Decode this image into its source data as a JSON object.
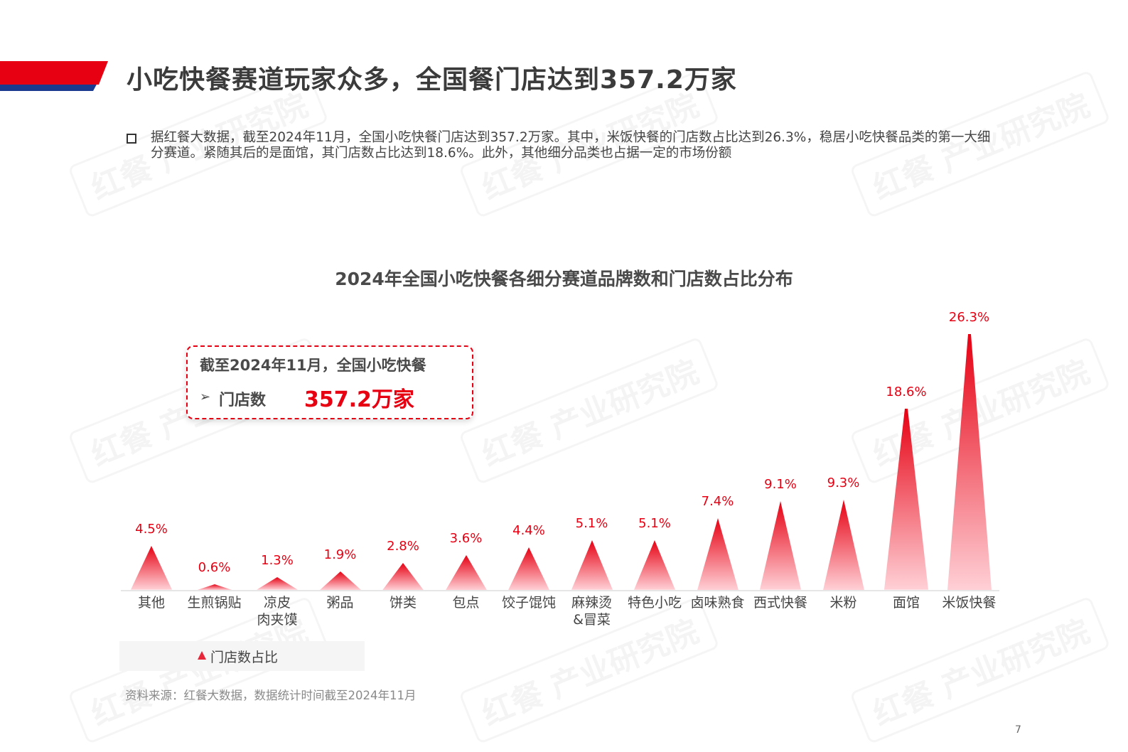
{
  "header": {
    "title": "小吃快餐赛道玩家众多，全国餐门店达到357.2万家",
    "band_colors": {
      "red": "#e60012",
      "blue": "#1a3a8f"
    }
  },
  "intro": {
    "text": "据红餐大数据，截至2024年11月，全国小吃快餐门店达到357.2万家。其中，米饭快餐的门店数占比达到26.3%，稳居小吃快餐品类的第一大细分赛道。紧随其后的是面馆，其门店数占比达到18.6%。此外，其他细分品类也占据一定的市场份额"
  },
  "callout": {
    "line1": "截至2024年11月，全国小吃快餐",
    "arrow": "➢",
    "label": "门店数",
    "value": "357.2万家"
  },
  "chart_data": {
    "type": "bar",
    "style": "triangle-pictograph",
    "title": "2024年全国小吃快餐各细分赛道品牌数和门店数占比分布",
    "categories": [
      "其他",
      "生煎锅贴",
      "凉皮\n肉夹馍",
      "粥品",
      "饼类",
      "包点",
      "饺子馄饨",
      "麻辣烫\n&冒菜",
      "特色小吃",
      "卤味熟食",
      "西式快餐",
      "米粉",
      "面馆",
      "米饭快餐"
    ],
    "series": [
      {
        "name": "门店数占比",
        "unit": "%",
        "values": [
          4.5,
          0.6,
          1.3,
          1.9,
          2.8,
          3.6,
          4.4,
          5.1,
          5.1,
          7.4,
          9.1,
          9.3,
          18.6,
          26.3
        ],
        "labels": [
          "4.5%",
          "0.6%",
          "1.3%",
          "1.9%",
          "2.8%",
          "3.6%",
          "4.4%",
          "5.1%",
          "5.1%",
          "7.4%",
          "9.1%",
          "9.3%",
          "18.6%",
          "26.3%"
        ]
      }
    ],
    "xlabel": "",
    "ylabel": "",
    "ylim": [
      0,
      26.3
    ],
    "grid": false,
    "axis_visible": false,
    "legend": {
      "position": "bottom-left",
      "entries": [
        "门店数占比"
      ]
    },
    "colors": {
      "bar_top": "#e60012",
      "bar_bottom": "#ffd0d6",
      "label": "#e60012"
    }
  },
  "legend": {
    "label": "门店数占比"
  },
  "footer": {
    "source": "资料来源：红餐大数据，数据统计时间截至2024年11月",
    "page_number": "7"
  },
  "watermark": {
    "text": "红餐 产业研究院"
  }
}
